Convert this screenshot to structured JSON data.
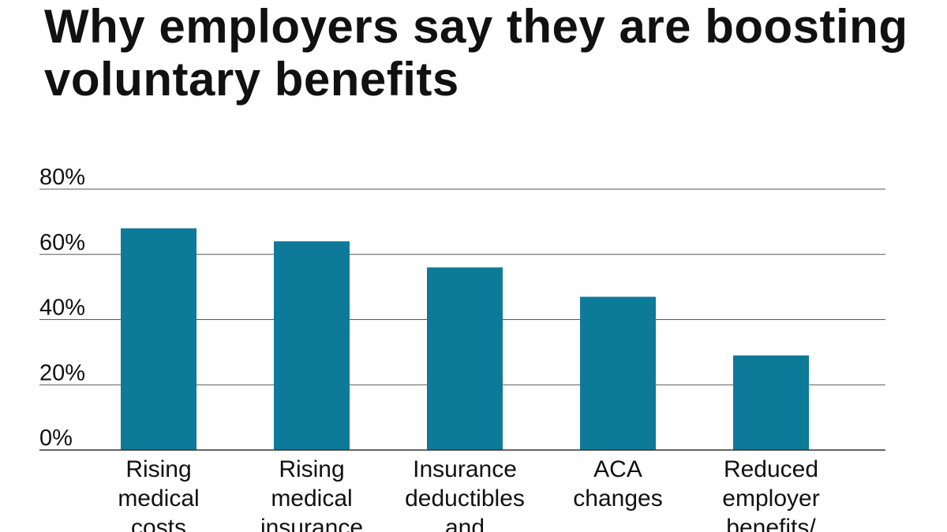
{
  "chart_data": {
    "type": "bar",
    "title": "Why employers say they are boosting voluntary benefits",
    "xlabel": "",
    "ylabel": "",
    "ylim": [
      0,
      80
    ],
    "yticks": [
      "0%",
      "20%",
      "40%",
      "60%",
      "80%"
    ],
    "ytick_values": [
      0,
      20,
      40,
      60,
      80
    ],
    "grid": true,
    "categories": [
      [
        "Rising",
        "medical",
        "costs"
      ],
      [
        "Rising",
        "medical",
        "insurance"
      ],
      [
        "Insurance",
        "deductibles",
        "and"
      ],
      [
        "ACA",
        "changes"
      ],
      [
        "Reduced",
        "employer",
        "benefits/"
      ]
    ],
    "values": [
      68,
      64,
      56,
      47,
      29
    ],
    "bar_color": "#0e7a99"
  }
}
